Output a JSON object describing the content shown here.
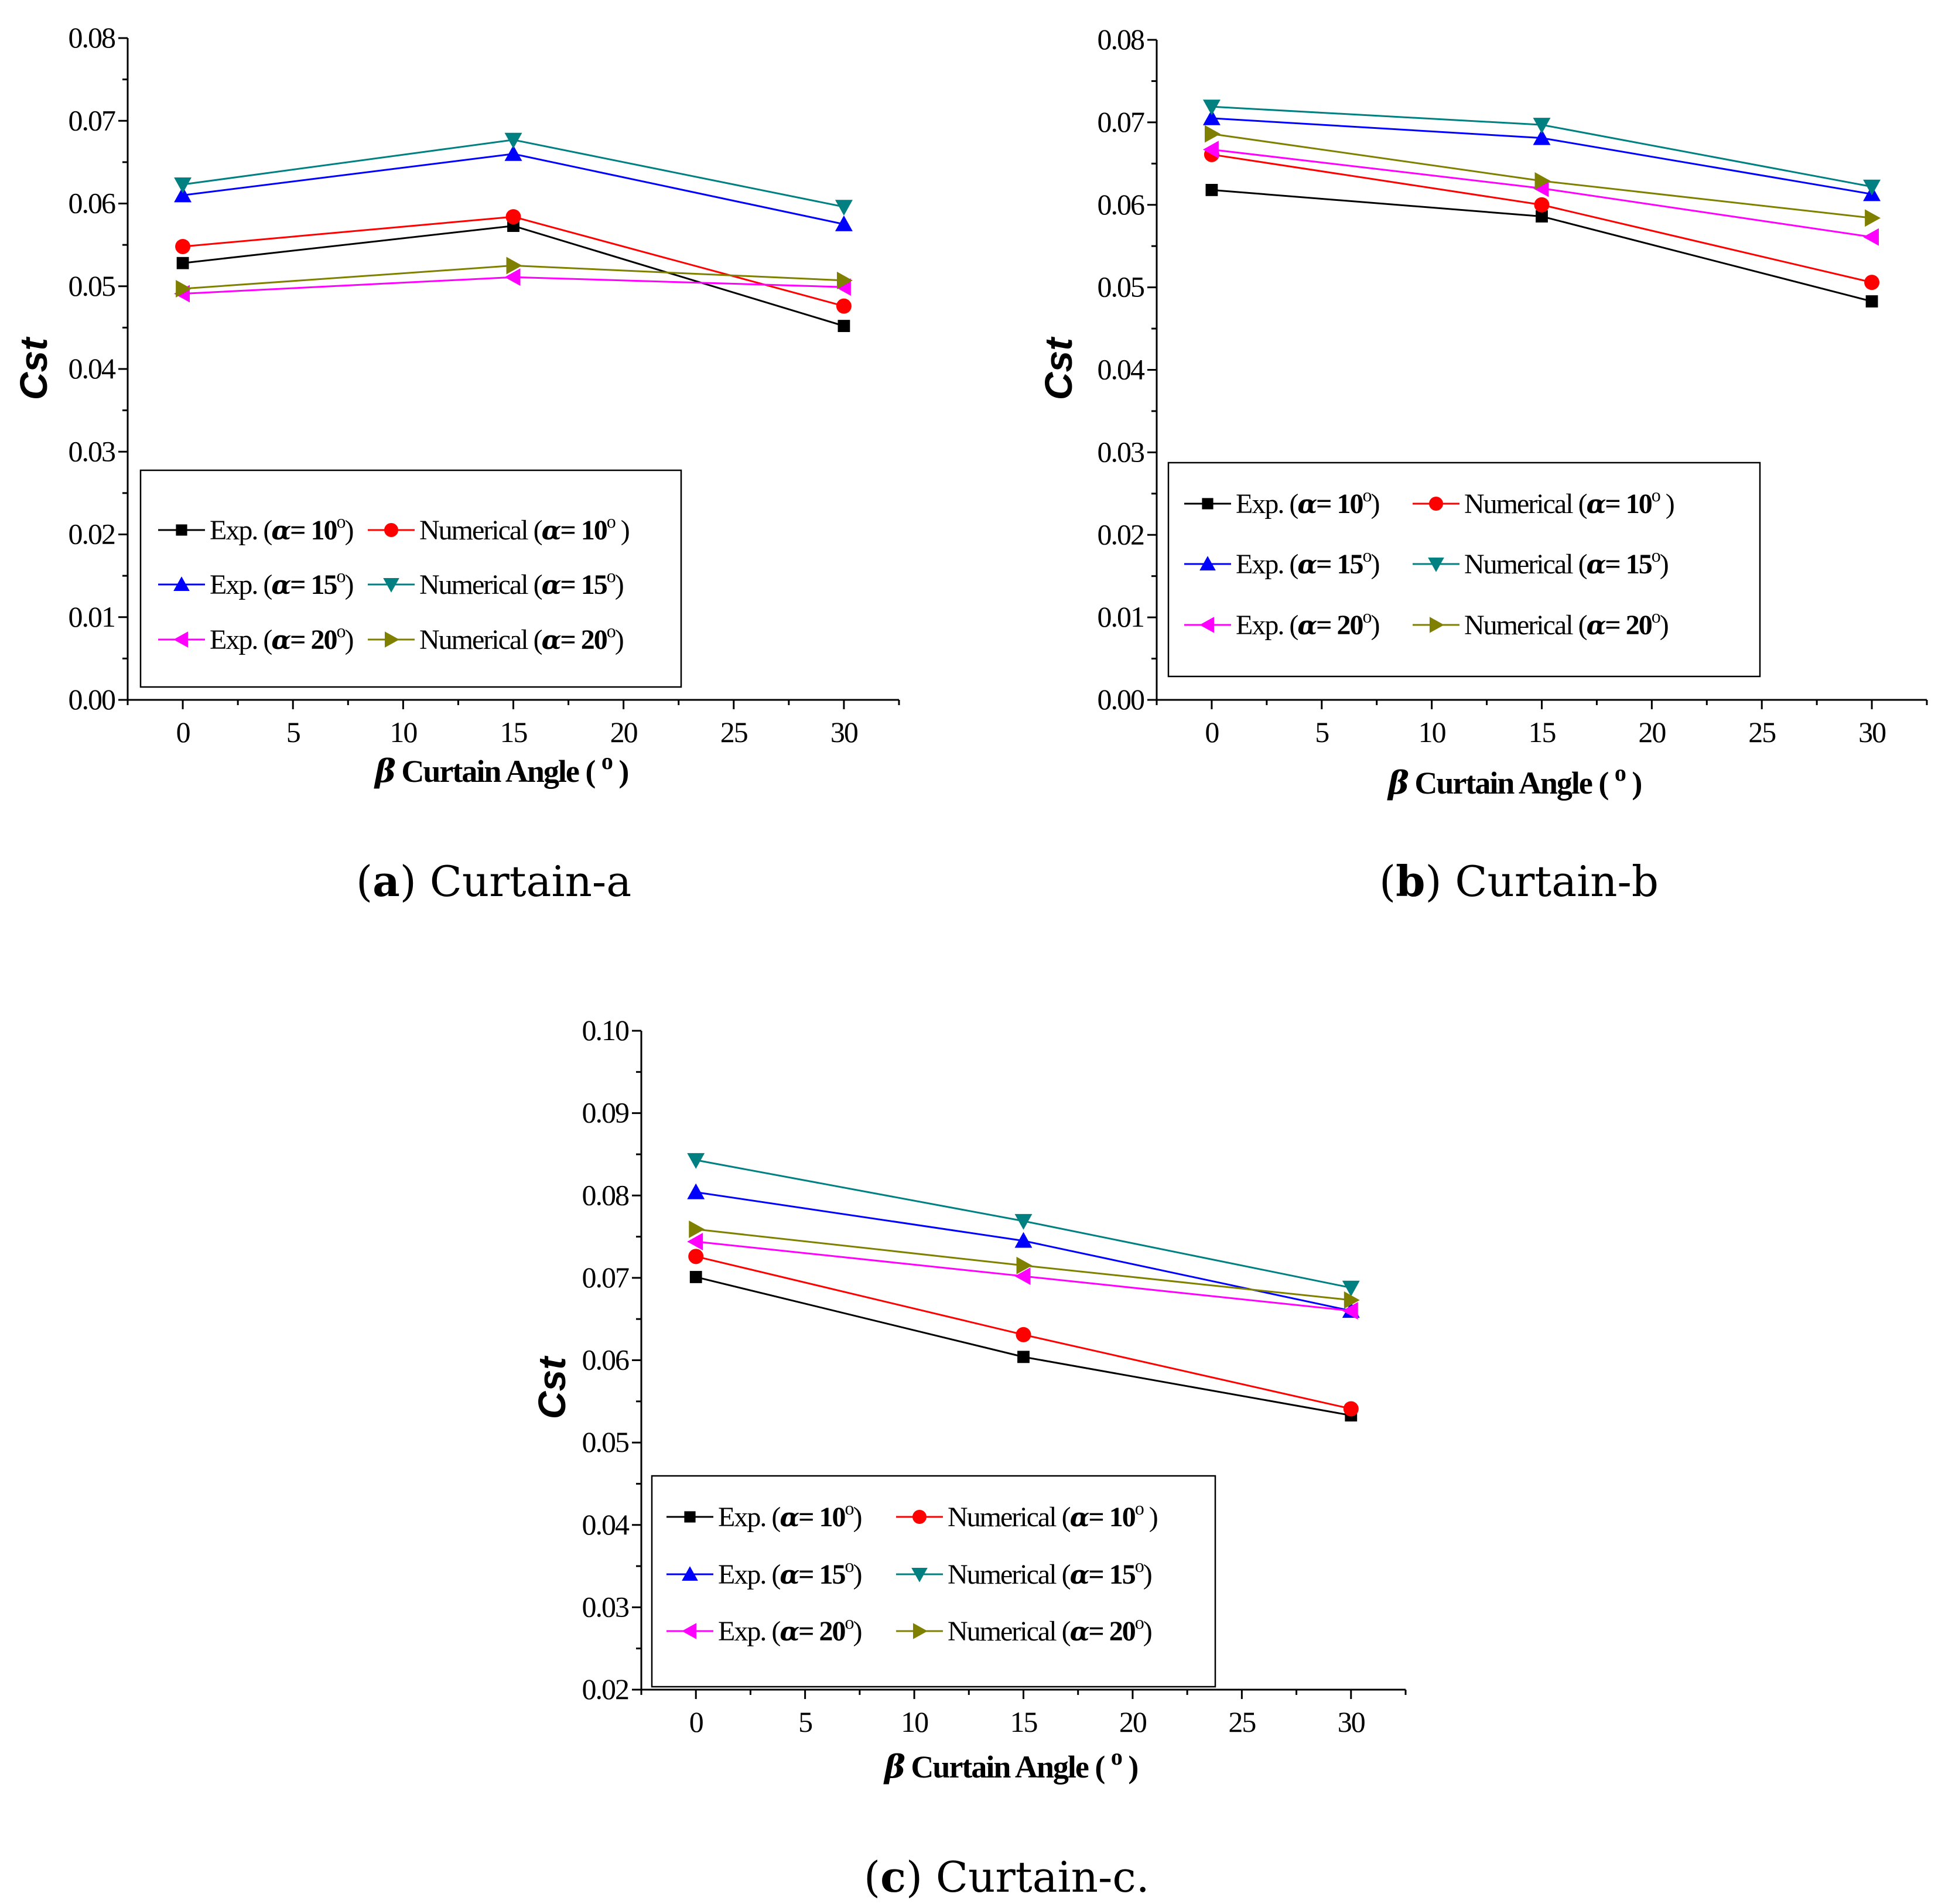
{
  "chart_data": [
    {
      "type": "line",
      "id": "a",
      "caption_letter": "a",
      "caption_text": " Curtain-a",
      "xlabel_symbol": "β",
      "xlabel_text": " Curtain Angle ( ",
      "xlabel_unit": "o",
      "xlabel_close": " )",
      "ylabel": "Cst",
      "xlim": [
        -2.5,
        32.5
      ],
      "ylim": [
        0.0,
        0.08
      ],
      "x_ticks": [
        0,
        5,
        10,
        15,
        20,
        25,
        30
      ],
      "x_tick_labels": [
        "0",
        "5",
        "10",
        "15",
        "20",
        "25",
        "30"
      ],
      "y_ticks": [
        0.0,
        0.01,
        0.02,
        0.03,
        0.04,
        0.05,
        0.06,
        0.07,
        0.08
      ],
      "y_tick_labels": [
        "0.00",
        "0.01",
        "0.02",
        "0.03",
        "0.04",
        "0.05",
        "0.06",
        "0.07",
        "0.08"
      ],
      "x": [
        0,
        15,
        30
      ],
      "legend_position": "bottom-left",
      "series": [
        {
          "name_prefix": "Exp. (",
          "alpha": "α",
          "eq": "= 10",
          "deg": "o",
          "close": ")",
          "color": "#000000",
          "marker": "square",
          "values": [
            0.0528,
            0.0573,
            0.0452
          ]
        },
        {
          "name_prefix": "Numerical  (",
          "alpha": "α",
          "eq": "= 10",
          "deg": "o",
          "close": " )",
          "color": "#ff0000",
          "marker": "circle",
          "values": [
            0.0548,
            0.0584,
            0.0476
          ]
        },
        {
          "name_prefix": "Exp. (",
          "alpha": "α",
          "eq": "= 15",
          "deg": "o",
          "close": ")",
          "color": "#0000ff",
          "marker": "triangle-up",
          "values": [
            0.061,
            0.066,
            0.0575
          ]
        },
        {
          "name_prefix": "Numerical  (",
          "alpha": "α",
          "eq": "= 15",
          "deg": "o",
          "close": ")",
          "color": "#008080",
          "marker": "triangle-down",
          "values": [
            0.0623,
            0.0677,
            0.0596
          ]
        },
        {
          "name_prefix": "Exp. (",
          "alpha": "α",
          "eq": "= 20",
          "deg": "o",
          "close": ")",
          "color": "#ff00ff",
          "marker": "triangle-left",
          "values": [
            0.0491,
            0.0511,
            0.0499
          ]
        },
        {
          "name_prefix": "Numerical  (",
          "alpha": "α",
          "eq": "= 20",
          "deg": "o",
          "close": ")",
          "color": "#808000",
          "marker": "triangle-right",
          "values": [
            0.0497,
            0.0525,
            0.0507
          ]
        }
      ]
    },
    {
      "type": "line",
      "id": "b",
      "caption_letter": "b",
      "caption_text": " Curtain-b",
      "xlabel_symbol": "β",
      "xlabel_text": " Curtain Angle ( ",
      "xlabel_unit": "o",
      "xlabel_close": " )",
      "ylabel": "Cst",
      "xlim": [
        -2.5,
        32.5
      ],
      "ylim": [
        0.0,
        0.08
      ],
      "x_ticks": [
        0,
        5,
        10,
        15,
        20,
        25,
        30
      ],
      "x_tick_labels": [
        "0",
        "5",
        "10",
        "15",
        "20",
        "25",
        "30"
      ],
      "y_ticks": [
        0.0,
        0.01,
        0.02,
        0.03,
        0.04,
        0.05,
        0.06,
        0.07,
        0.08
      ],
      "y_tick_labels": [
        "0.00",
        "0.01",
        "0.02",
        "0.03",
        "0.04",
        "0.05",
        "0.06",
        "0.07",
        "0.08"
      ],
      "x": [
        0,
        15,
        30
      ],
      "legend_position": "bottom-left",
      "series": [
        {
          "name_prefix": "Exp. (",
          "alpha": "α",
          "eq": "= 10",
          "deg": "o",
          "close": ")",
          "color": "#000000",
          "marker": "square",
          "values": [
            0.0618,
            0.0586,
            0.0483
          ]
        },
        {
          "name_prefix": "Numerical  (",
          "alpha": "α",
          "eq": "= 10",
          "deg": "o",
          "close": " )",
          "color": "#ff0000",
          "marker": "circle",
          "values": [
            0.0661,
            0.06,
            0.0506
          ]
        },
        {
          "name_prefix": "Exp. (",
          "alpha": "α",
          "eq": "= 15",
          "deg": "o",
          "close": ")",
          "color": "#0000ff",
          "marker": "triangle-up",
          "values": [
            0.0705,
            0.0681,
            0.0613
          ]
        },
        {
          "name_prefix": "Numerical  (",
          "alpha": "α",
          "eq": "= 15",
          "deg": "o",
          "close": ")",
          "color": "#008080",
          "marker": "triangle-down",
          "values": [
            0.0719,
            0.0697,
            0.0622
          ]
        },
        {
          "name_prefix": "Exp. (",
          "alpha": "α",
          "eq": "= 20",
          "deg": "o",
          "close": ")",
          "color": "#ff00ff",
          "marker": "triangle-left",
          "values": [
            0.0667,
            0.062,
            0.0561
          ]
        },
        {
          "name_prefix": "Numerical  (",
          "alpha": "α",
          "eq": "= 20",
          "deg": "o",
          "close": ")",
          "color": "#808000",
          "marker": "triangle-right",
          "values": [
            0.0686,
            0.0629,
            0.0584
          ]
        }
      ]
    },
    {
      "type": "line",
      "id": "c",
      "caption_letter": "c",
      "caption_text": " Curtain-c.",
      "xlabel_symbol": "β",
      "xlabel_text": " Curtain Angle ( ",
      "xlabel_unit": "o",
      "xlabel_close": " )",
      "ylabel": "Cst",
      "xlim": [
        -2.5,
        32.5
      ],
      "ylim": [
        0.02,
        0.1
      ],
      "x_ticks": [
        0,
        5,
        10,
        15,
        20,
        25,
        30
      ],
      "x_tick_labels": [
        "0",
        "5",
        "10",
        "15",
        "20",
        "25",
        "30"
      ],
      "y_ticks": [
        0.02,
        0.03,
        0.04,
        0.05,
        0.06,
        0.07,
        0.08,
        0.09,
        0.1
      ],
      "y_tick_labels": [
        "0.02",
        "0.03",
        "0.04",
        "0.05",
        "0.06",
        "0.07",
        "0.08",
        "0.09",
        "0.10"
      ],
      "x": [
        0,
        15,
        30
      ],
      "legend_position": "bottom-left",
      "series": [
        {
          "name_prefix": "Exp. (",
          "alpha": "α",
          "eq": "= 10",
          "deg": "o",
          "close": ")",
          "color": "#000000",
          "marker": "square",
          "values": [
            0.0701,
            0.0604,
            0.0533
          ]
        },
        {
          "name_prefix": "Numerical  (",
          "alpha": "α",
          "eq": "= 10",
          "deg": "o",
          "close": " )",
          "color": "#ff0000",
          "marker": "circle",
          "values": [
            0.0726,
            0.0631,
            0.0541
          ]
        },
        {
          "name_prefix": "Exp. (",
          "alpha": "α",
          "eq": "= 15",
          "deg": "o",
          "close": ")",
          "color": "#0000ff",
          "marker": "triangle-up",
          "values": [
            0.0804,
            0.0745,
            0.066
          ]
        },
        {
          "name_prefix": "Numerical  (",
          "alpha": "α",
          "eq": "= 15",
          "deg": "o",
          "close": ")",
          "color": "#008080",
          "marker": "triangle-down",
          "values": [
            0.0843,
            0.0769,
            0.0688
          ]
        },
        {
          "name_prefix": "Exp. (",
          "alpha": "α",
          "eq": "= 20",
          "deg": "o",
          "close": ")",
          "color": "#ff00ff",
          "marker": "triangle-left",
          "values": [
            0.0744,
            0.0702,
            0.066
          ]
        },
        {
          "name_prefix": "Numerical  (",
          "alpha": "α",
          "eq": "= 20",
          "deg": "o",
          "close": ")",
          "color": "#808000",
          "marker": "triangle-right",
          "values": [
            0.0759,
            0.0715,
            0.0673
          ]
        }
      ]
    }
  ]
}
